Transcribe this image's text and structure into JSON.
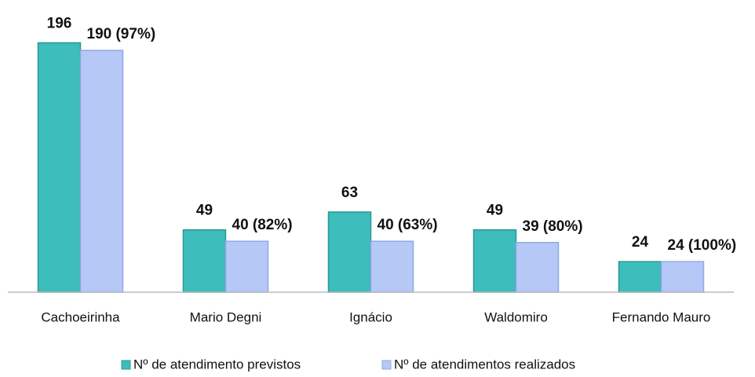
{
  "chart_data": {
    "type": "bar",
    "categories": [
      "Cachoeirinha",
      "Mario Degni",
      "Ignácio",
      "Waldomiro",
      "Fernando Mauro"
    ],
    "series": [
      {
        "name": "Nº de atendimento previstos",
        "color": "#3dbdbb",
        "values": [
          196,
          49,
          63,
          49,
          24
        ]
      },
      {
        "name": "Nº de atendimentos realizados",
        "color": "#b5c8f6",
        "values": [
          190,
          40,
          40,
          39,
          24
        ],
        "value_labels": [
          "190 (97%)",
          "40 (82%)",
          "40 (63%)",
          "39 (80%)",
          "24 (100%)"
        ]
      }
    ],
    "ylim": [
      0,
      200
    ]
  }
}
